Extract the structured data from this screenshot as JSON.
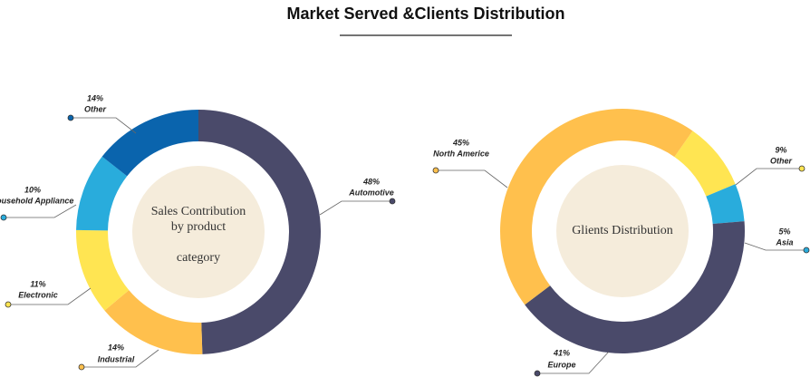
{
  "title": "Market Served &Clients Distribution",
  "chart_data": [
    {
      "type": "donut",
      "center_text": [
        "Sales Contribution",
        "by product",
        "category"
      ],
      "categories": [
        "Automotive",
        "Industrial",
        "Electronic",
        "household Appliance",
        "Other"
      ],
      "values": [
        48,
        14,
        11,
        10,
        14
      ],
      "value_labels": [
        "48%",
        "14%",
        "11%",
        "10%",
        "14%"
      ],
      "colors": [
        "#4a4a6a",
        "#ffc04d",
        "#ffe552",
        "#29acdc",
        "#0a64ad"
      ]
    },
    {
      "type": "donut",
      "center_text": [
        "Glients Distribution"
      ],
      "categories": [
        "Other",
        "Asia",
        "Europe",
        "North Americe"
      ],
      "values": [
        9,
        5,
        41,
        45
      ],
      "value_labels": [
        "9%",
        "5%",
        "41%",
        "45%"
      ],
      "colors": [
        "#ffe552",
        "#29acdc",
        "#4a4a6a",
        "#ffc04d"
      ]
    }
  ]
}
